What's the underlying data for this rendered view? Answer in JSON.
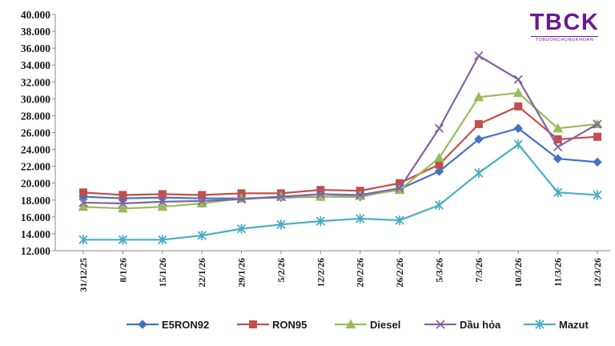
{
  "logo": {
    "main": "TBCK",
    "sub": "TOBUONCHUNGKHOAN",
    "color": "#6a1b8f"
  },
  "chart_data": {
    "type": "line",
    "title": "",
    "xlabel": "",
    "ylabel": "",
    "ylim": [
      12000,
      40000
    ],
    "yticks": [
      12000,
      14000,
      16000,
      18000,
      20000,
      22000,
      24000,
      26000,
      28000,
      30000,
      32000,
      34000,
      36000,
      38000,
      40000
    ],
    "ytick_labels": [
      "12.000",
      "14.000",
      "16.000",
      "18.000",
      "20.000",
      "22.000",
      "24.000",
      "26.000",
      "28.000",
      "30.000",
      "32.000",
      "34.000",
      "36.000",
      "38.000",
      "40.000"
    ],
    "categories": [
      "31/12/25",
      "8/1/26",
      "15/1/26",
      "22/1/26",
      "29/1/26",
      "5/2/26",
      "12/2/26",
      "20/2/26",
      "26/2/26",
      "5/3/26",
      "7/3/26",
      "10/3/26",
      "11/3/26",
      "12/3/26"
    ],
    "grid": false,
    "legend_position": "bottom",
    "series": [
      {
        "name": "E5RON92",
        "color": "#4472c4",
        "marker": "diamond",
        "values": [
          18400,
          18200,
          18300,
          18200,
          18200,
          18300,
          18400,
          18400,
          19300,
          21400,
          25200,
          26500,
          22900,
          22500
        ]
      },
      {
        "name": "RON95",
        "color": "#c0504d",
        "marker": "square",
        "values": [
          18900,
          18600,
          18700,
          18600,
          18800,
          18800,
          19200,
          19100,
          20000,
          22200,
          27000,
          29100,
          25200,
          25500
        ]
      },
      {
        "name": "Diesel",
        "color": "#9bbb59",
        "marker": "triangle",
        "values": [
          17200,
          17000,
          17200,
          17600,
          18200,
          18400,
          18400,
          18500,
          19200,
          23000,
          30200,
          30700,
          26500,
          27000
        ]
      },
      {
        "name": "Dầu hỏa",
        "color": "#8064a2",
        "marker": "x",
        "values": [
          17700,
          17600,
          17800,
          17900,
          18100,
          18400,
          18700,
          18600,
          19400,
          26500,
          35100,
          32300,
          24300,
          27000
        ]
      },
      {
        "name": "Mazut",
        "color": "#4bacc6",
        "marker": "star",
        "values": [
          13300,
          13300,
          13300,
          13800,
          14600,
          15100,
          15500,
          15800,
          15600,
          17400,
          21200,
          24600,
          18900,
          18600
        ]
      }
    ]
  }
}
